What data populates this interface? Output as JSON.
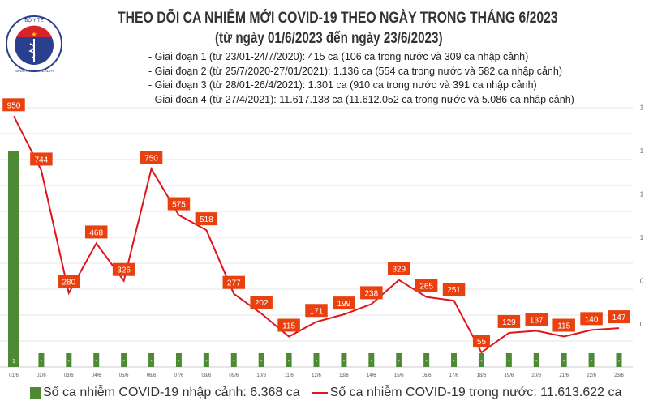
{
  "header": {
    "logo_text": "BỘ Y TẾ · MINISTRY OF HEALTH",
    "title": "THEO DÕI CA NHIỄM MỚI COVID-19 THEO NGÀY TRONG THÁNG 6/2023",
    "subtitle": "(từ ngày 01/6/2023 đến ngày 23/6/2023)",
    "phases": [
      "- Giai đoạn 1 (từ 23/01-24/7/2020): 415 ca (106 ca trong nước và 309 ca nhập cảnh)",
      "- Giai đoạn 2 (từ 25/7/2020-27/01/2021): 1.136 ca (554 ca trong nước và 582 ca nhập cảnh)",
      "- Giai đoạn 3 (từ 28/01-26/4/2021): 1.301 ca (910 ca trong nước và 391 ca nhập cảnh)",
      "- Giai đoạn 4 (từ 27/4/2021): 11.617.138 ca (11.612.052 ca trong nước và 5.086 ca nhập cảnh)"
    ]
  },
  "chart_data": {
    "type": "bar+line",
    "categories": [
      "01/6",
      "02/6",
      "03/6",
      "04/6",
      "05/6",
      "06/6",
      "07/6",
      "08/6",
      "09/6",
      "10/6",
      "11/6",
      "12/6",
      "13/6",
      "14/6",
      "15/6",
      "16/6",
      "17/6",
      "18/6",
      "19/6",
      "20/6",
      "21/6",
      "22/6",
      "23/6"
    ],
    "series": [
      {
        "name": "Số ca nhiễm COVID-19 nhập cảnh: 6.368 ca",
        "type": "bar",
        "color": "#4e8a35",
        "values": [
          1,
          0,
          0,
          0,
          0,
          0,
          0,
          0,
          0,
          0,
          0,
          0,
          0,
          0,
          0,
          0,
          0,
          0,
          0,
          0,
          0,
          0,
          0
        ],
        "labels": [
          "1",
          "-",
          "-",
          "-",
          "-",
          "-",
          "-",
          "-",
          "-",
          "-",
          "-",
          "-",
          "-",
          "-",
          "-",
          "-",
          "-",
          "-",
          "-",
          "-",
          "-",
          "-",
          "-"
        ]
      },
      {
        "name": "Số ca nhiễm COVID-19 trong nước: 11.613.622 ca",
        "type": "line",
        "color": "#e0141b",
        "values": [
          950,
          744,
          280,
          468,
          326,
          750,
          575,
          518,
          277,
          202,
          115,
          171,
          199,
          238,
          329,
          265,
          251,
          55,
          129,
          137,
          115,
          140,
          147
        ]
      }
    ],
    "right_axis_ticks": [
      "0",
      "0",
      "1",
      "1",
      "1",
      "1"
    ],
    "label_color": "#e8400f",
    "legend_position": "bottom"
  }
}
